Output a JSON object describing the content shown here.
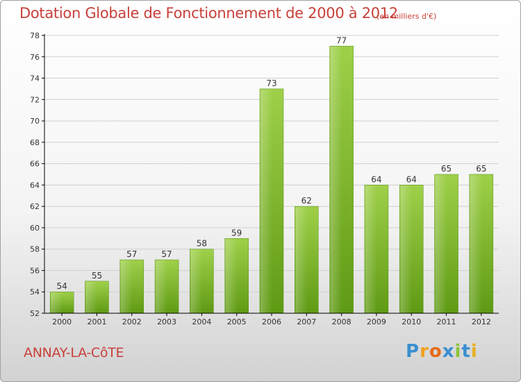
{
  "header": {
    "title": "Dotation Globale de Fonctionnement de 2000 à 2012",
    "unit_note": "(en milliers d'€)"
  },
  "footer": {
    "commune": "ANNAY-LA-CôTE",
    "brand": "Proxiti",
    "brand_letters": [
      {
        "ch": "P",
        "color": "#3a8fd0"
      },
      {
        "ch": "r",
        "color": "#f0a020"
      },
      {
        "ch": "o",
        "color": "#e86a1a"
      },
      {
        "ch": "x",
        "color": "#3a8fd0"
      },
      {
        "ch": "i",
        "color": "#8cc43a"
      },
      {
        "ch": "t",
        "color": "#3a8fd0"
      },
      {
        "ch": "i",
        "color": "#e8b020"
      }
    ]
  },
  "colors": {
    "accent_text": "#c8403a",
    "bar_top": "#9fd04a",
    "bar_bottom": "#5f9a14",
    "axis": "#000000",
    "grid": "#cfcfcf"
  },
  "chart_data": {
    "type": "bar",
    "title": "Dotation Globale de Fonctionnement de 2000 à 2012",
    "subtitle": "(en milliers d'€)",
    "categories": [
      "2000",
      "2001",
      "2002",
      "2003",
      "2004",
      "2005",
      "2006",
      "2007",
      "2008",
      "2009",
      "2010",
      "2011",
      "2012"
    ],
    "values": [
      54,
      55,
      57,
      57,
      58,
      59,
      73,
      62,
      77,
      64,
      64,
      65,
      65
    ],
    "ylim": [
      52,
      78
    ],
    "yticks": [
      52,
      54,
      56,
      58,
      60,
      62,
      64,
      66,
      68,
      70,
      72,
      74,
      76,
      78
    ],
    "grid": true,
    "data_labels": true
  }
}
